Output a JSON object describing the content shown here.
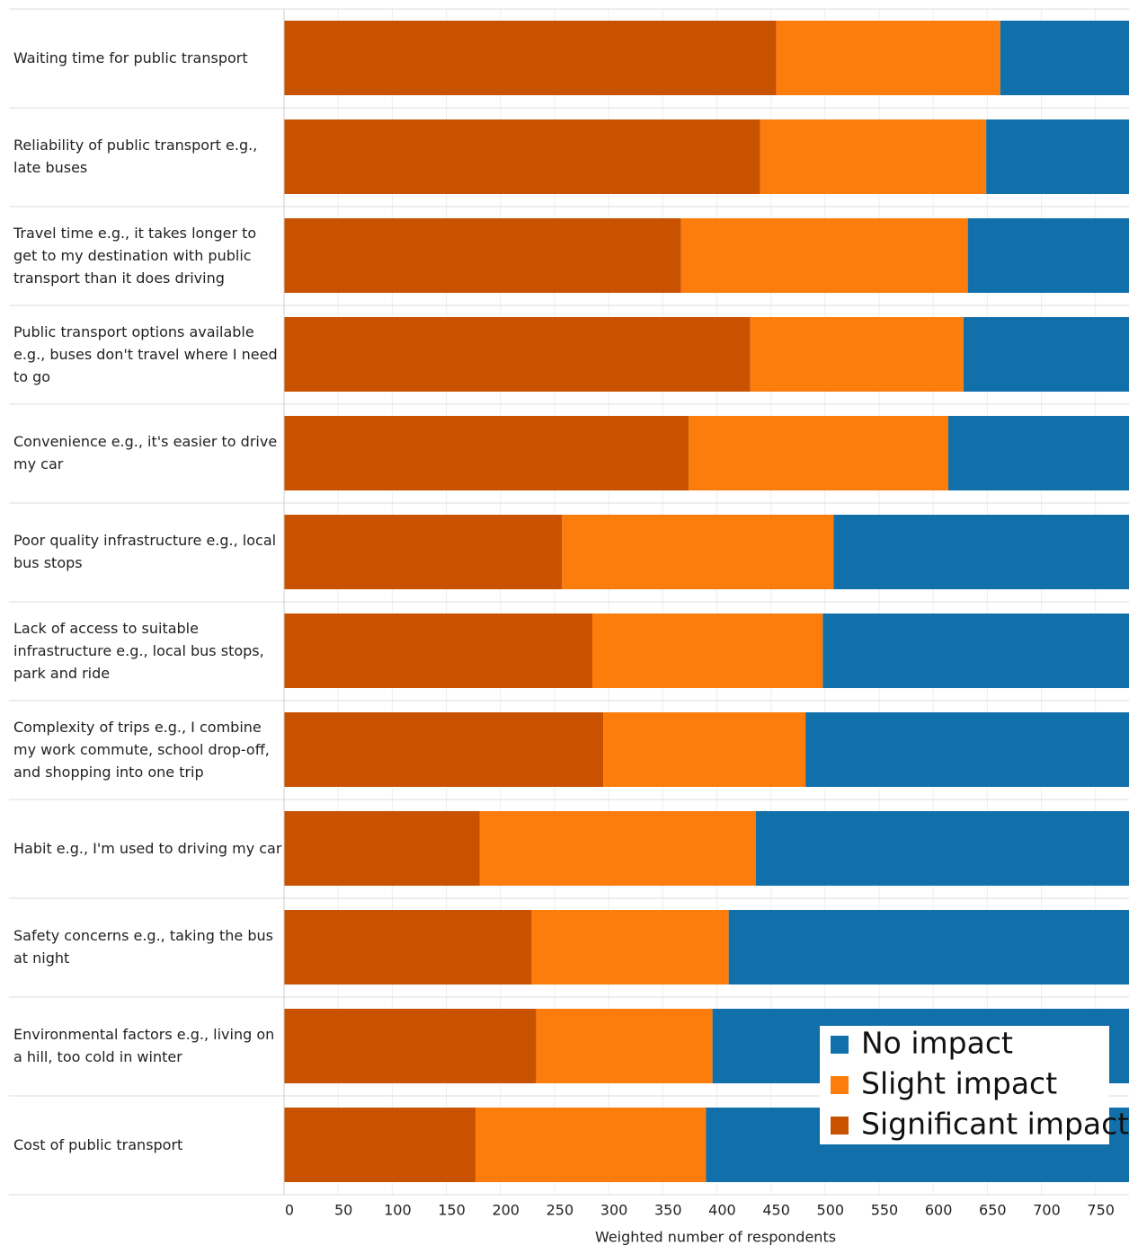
{
  "chart_data": {
    "type": "stacked-bar-horizontal",
    "categories": [
      "Waiting time for public transport",
      "Reliability of public transport e.g., late buses",
      "Travel time e.g., it takes longer to get to my destination with public transport than it does driving",
      "Public transport options available e.g., buses don't travel where I need to go",
      "Convenience e.g., it's easier to drive my car",
      "Poor quality infrastructure e.g., local bus stops",
      "Lack of access to suitable infrastructure e.g., local bus stops, park and ride",
      "Complexity of trips e.g., I combine my work commute, school drop-off, and shopping into one trip",
      "Habit e.g., I'm used to driving my car",
      "Safety concerns e.g., taking the bus at night",
      "Environmental factors e.g., living on a hill, too cold in winter",
      "Cost of public transport"
    ],
    "series": [
      {
        "name": "Significant impact",
        "color": "#c85200",
        "values": [
          455,
          440,
          367,
          431,
          374,
          257,
          285,
          295,
          181,
          229,
          233,
          177
        ]
      },
      {
        "name": "Slight impact",
        "color": "#fc7d0b",
        "values": [
          207,
          209,
          265,
          197,
          240,
          251,
          213,
          187,
          255,
          182,
          163,
          213
        ]
      },
      {
        "name": "No impact",
        "color": "#1170aa",
        "values": [
          138,
          151,
          168,
          172,
          186,
          292,
          302,
          318,
          364,
          389,
          404,
          410
        ]
      }
    ],
    "xlabel": "Weighted number of respondents",
    "xlim": [
      0,
      781
    ],
    "xticks": [
      0,
      50,
      100,
      150,
      200,
      250,
      300,
      350,
      400,
      450,
      500,
      550,
      600,
      650,
      700,
      750
    ],
    "grid": true,
    "legend": "lower-right"
  }
}
